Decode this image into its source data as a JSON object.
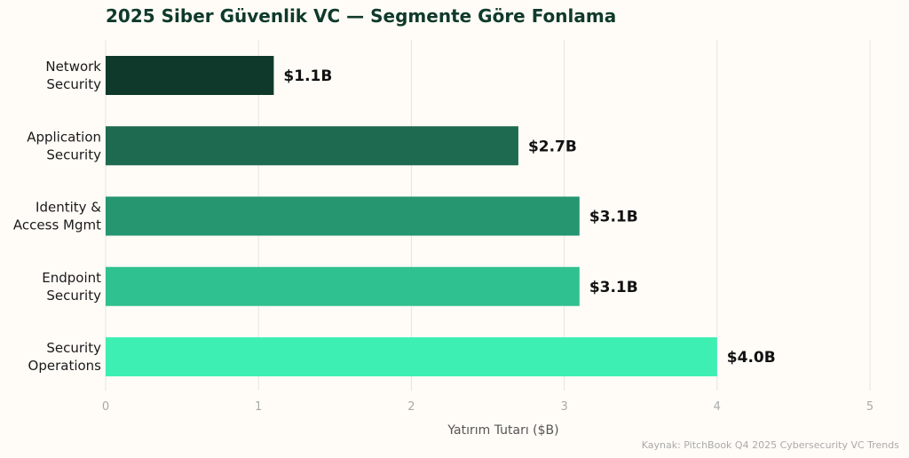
{
  "chart_data": {
    "type": "bar",
    "orientation": "horizontal",
    "title": "2025 Siber Güvenlik VC — Segmente Göre Fonlama",
    "categories": [
      [
        "Network",
        "Security"
      ],
      [
        "Application",
        "Security"
      ],
      [
        "Identity &",
        "Access Mgmt"
      ],
      [
        "Endpoint",
        "Security"
      ],
      [
        "Security",
        "Operations"
      ]
    ],
    "values": [
      1.1,
      2.7,
      3.1,
      3.1,
      4.0
    ],
    "data_labels": [
      "$1.1B",
      "$2.7B",
      "$3.1B",
      "$3.1B",
      "$4.0B"
    ],
    "colors": [
      "#0f3a2b",
      "#1d6a50",
      "#269670",
      "#30c190",
      "#3eefb3"
    ],
    "xlabel": "Yatırım Tutarı ($B)",
    "xlim": [
      0,
      5
    ],
    "xticks": [
      0,
      1,
      2,
      3,
      4,
      5
    ],
    "grid": "vertical",
    "source": "Kaynak: PitchBook Q4 2025 Cybersecurity VC Trends"
  }
}
